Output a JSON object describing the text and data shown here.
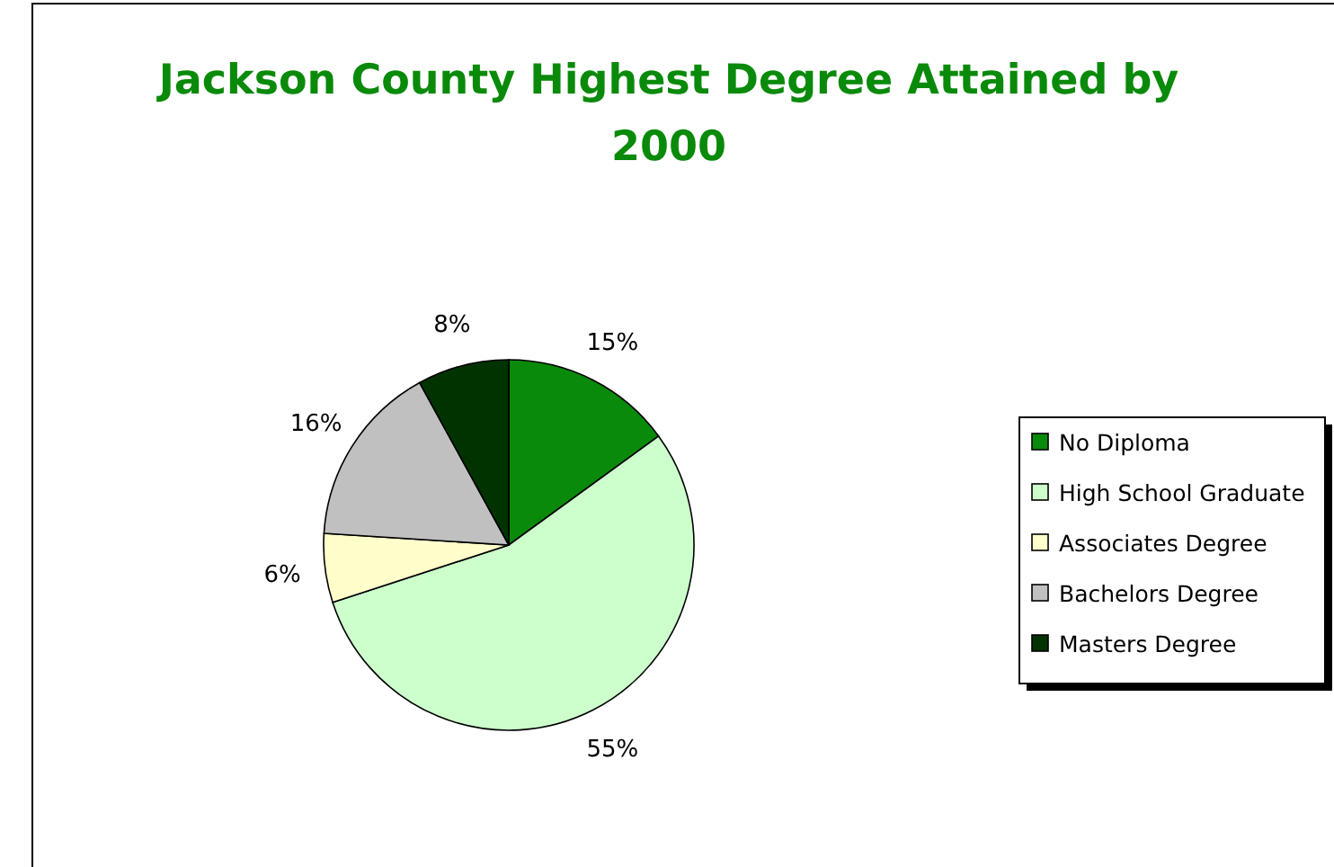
{
  "chart_data": {
    "type": "pie",
    "title": "Jackson County Highest Degree Attained by 2000",
    "categories": [
      "No Diploma",
      "High School Graduate",
      "Associates Degree",
      "Bachelors Degree",
      "Masters Degree"
    ],
    "values": [
      15,
      55,
      6,
      16,
      8
    ],
    "value_labels": [
      "15%",
      "55%",
      "6%",
      "16%",
      "8%"
    ],
    "colors": [
      "#0a8a0a",
      "#ccffcc",
      "#ffffcc",
      "#c0c0c0",
      "#003300"
    ],
    "legend": "right"
  }
}
